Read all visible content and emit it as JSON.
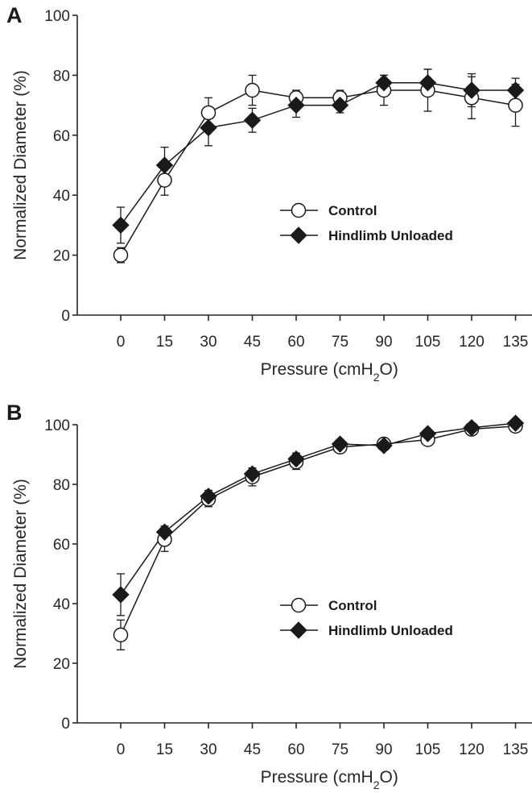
{
  "chart_data": [
    {
      "panel_label": "A",
      "type": "line",
      "x": [
        0,
        15,
        30,
        45,
        60,
        75,
        90,
        105,
        120,
        135
      ],
      "xlabel": "Pressure (cmH",
      "xlabel_subscript": "2",
      "xlabel_suffix": "O)",
      "ylabel": "Normalized Diameter (%)",
      "ylim": [
        0,
        100
      ],
      "yticks": [
        0,
        20,
        40,
        60,
        80,
        100
      ],
      "legend_position": "center-right",
      "series": [
        {
          "name": "Control",
          "marker": "open-circle",
          "values": [
            20,
            45,
            67.5,
            75,
            72.5,
            72.5,
            75,
            75,
            72.5,
            70
          ],
          "errors": [
            2.5,
            5,
            5,
            5,
            2.5,
            2.5,
            5,
            7,
            7,
            7
          ]
        },
        {
          "name": "Hindlimb Unloaded",
          "marker": "filled-diamond",
          "values": [
            30,
            50,
            62.5,
            65,
            70,
            70,
            77.5,
            77.5,
            75,
            75
          ],
          "errors": [
            6,
            6,
            6,
            4,
            4,
            2.5,
            2.5,
            4.5,
            5.5,
            4
          ]
        }
      ]
    },
    {
      "panel_label": "B",
      "type": "line",
      "x": [
        0,
        15,
        30,
        45,
        60,
        75,
        90,
        105,
        120,
        135
      ],
      "xlabel": "Pressure (cmH",
      "xlabel_subscript": "2",
      "xlabel_suffix": "O)",
      "ylabel": "Normalized Diameter (%)",
      "ylim": [
        0,
        100
      ],
      "yticks": [
        0,
        20,
        40,
        60,
        80,
        100
      ],
      "legend_position": "center-right",
      "series": [
        {
          "name": "Control",
          "marker": "open-circle",
          "values": [
            29.5,
            61.5,
            75,
            82.5,
            87.5,
            92.5,
            93.5,
            95,
            98.5,
            99.5
          ],
          "errors": [
            5,
            4,
            2.5,
            3,
            2.5,
            1.5,
            1.5,
            1.5,
            1.5,
            1.5
          ]
        },
        {
          "name": "Hindlimb Unloaded",
          "marker": "filled-diamond",
          "values": [
            43,
            64,
            76,
            83.5,
            88.5,
            93.5,
            93,
            97,
            99,
            100.5
          ],
          "errors": [
            7,
            2,
            2,
            2,
            2,
            1.5,
            1.5,
            1.5,
            1.5,
            1.5
          ]
        }
      ]
    }
  ],
  "colors": {
    "ink": "#1a1a1a",
    "axis": "#262626",
    "open_marker_fill": "#ffffff",
    "background": "#ffffff"
  }
}
